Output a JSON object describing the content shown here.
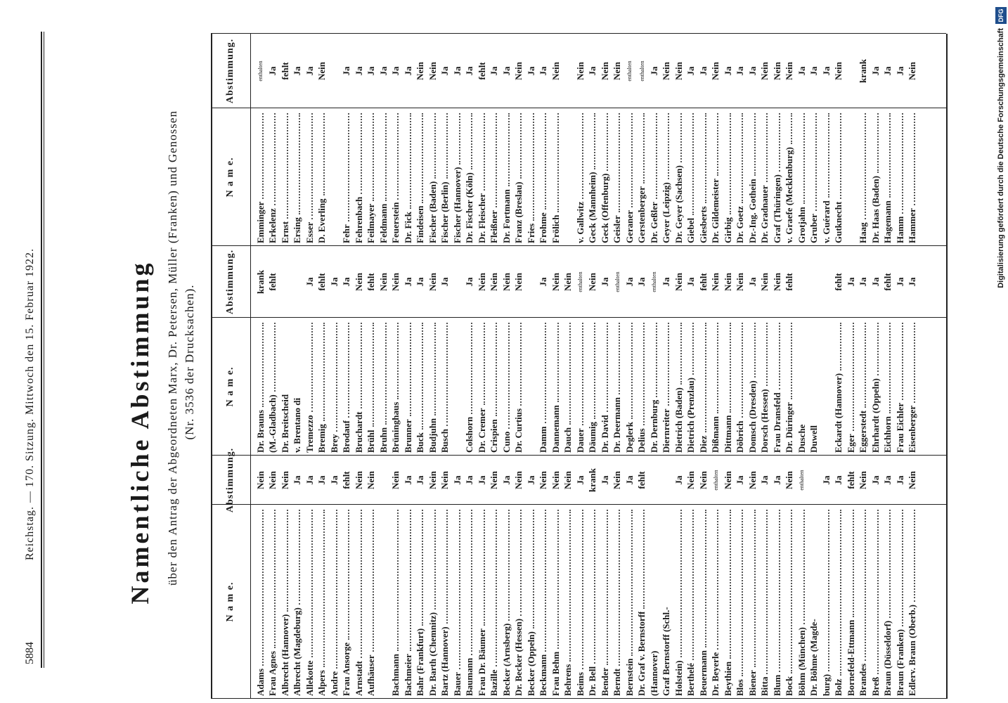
{
  "header": {
    "page": "5884",
    "running_head": "Reichstag. — 170. Sitzung. Mittwoch den 15. Februar 1922.",
    "title": "Namentliche Abstimmung",
    "subtitle": [
      "über den Antrag der Abgeordneten Marx, Dr. Petersen, Müller (Franken) und Genossen",
      "(Nr. 3536 der Drucksachen)."
    ]
  },
  "table": {
    "header": {
      "name": "N a m e.",
      "vote": "Abstimmung."
    },
    "columns": [
      {
        "groups": [
          {
            "rows": [
              {
                "name": "Adams",
                "vote": "Nein"
              },
              {
                "name": "Frau Agnes",
                "vote": "Nein"
              },
              {
                "name": "Albrecht (Hannover)",
                "vote": "Nein"
              },
              {
                "name": "Albrecht (Magdeburg)",
                "vote": "Ja"
              },
              {
                "name": "Allekotte",
                "vote": "Ja"
              },
              {
                "name": "Alpers",
                "vote": "Ja"
              },
              {
                "name": "Andre",
                "vote": "Ja"
              },
              {
                "name": "Frau Ansorge",
                "vote": "fehlt"
              },
              {
                "name": "Arnstadt",
                "vote": "Nein"
              },
              {
                "name": "Aufhäuser",
                "vote": "Nein"
              }
            ]
          },
          {
            "rows": [
              {
                "name": "Bachmann",
                "vote": "Nein"
              },
              {
                "name": "Bachmeier",
                "vote": "Ja"
              },
              {
                "name": "Bahr (Frankfurt)",
                "vote": "Ja"
              },
              {
                "name": "Dr. Barth (Chemnitz)",
                "vote": "Nein"
              },
              {
                "name": "Bartz (Hannover)",
                "vote": "Nein"
              },
              {
                "name": "Bauer",
                "vote": "Ja"
              },
              {
                "name": "Baumann",
                "vote": "Ja"
              },
              {
                "name": "Frau Dr. Bäumer",
                "vote": "Ja"
              },
              {
                "name": "Bazille",
                "vote": "Nein"
              },
              {
                "name": "Becker (Arnsberg)",
                "vote": "Ja"
              },
              {
                "name": "Dr. Becker (Hessen)",
                "vote": "Nein"
              },
              {
                "name": "Becker (Oppeln)",
                "vote": "Ja"
              },
              {
                "name": "Beckmann",
                "vote": "Nein"
              },
              {
                "name": "Frau Behm",
                "vote": "Nein"
              },
              {
                "name": "Behrens",
                "vote": "Nein"
              },
              {
                "name": "Beims",
                "vote": "Ja"
              },
              {
                "name": "Dr. Bell",
                "vote": "krank"
              },
              {
                "name": "Bender",
                "vote": "Ja"
              },
              {
                "name": "Berndt",
                "vote": "Nein"
              },
              {
                "name": "Bernstein",
                "vote": "Ja"
              },
              {
                "name": "Dr. Graf v. Bernstorff",
                "vote": "fehlt"
              },
              {
                "name": "(Hannover)"
              },
              {
                "name": "Graf Bernstorff (Schl.-"
              },
              {
                "name": "Holstein)",
                "vote": "Ja"
              },
              {
                "name": "Berthelé",
                "vote": "Nein"
              },
              {
                "name": "Beuermann",
                "vote": "Nein"
              },
              {
                "name": "Dr. Beyerle",
                "vote": "enthalten"
              },
              {
                "name": "Beythien",
                "vote": "Nein"
              },
              {
                "name": "Blos",
                "vote": "Ja"
              },
              {
                "name": "Biener",
                "vote": "Nein"
              },
              {
                "name": "Bitta",
                "vote": "Ja"
              },
              {
                "name": "Blum",
                "vote": "Ja"
              },
              {
                "name": "Bock",
                "vote": "Nein"
              },
              {
                "name": "Böhm (München)",
                "vote": "enthalten"
              },
              {
                "name": "Dr. Böhme (Magde-"
              },
              {
                "name": "burg)",
                "vote": "Ja"
              },
              {
                "name": "Bolz",
                "vote": "Ja"
              },
              {
                "name": "Bornefeld-Ettmann",
                "vote": "fehlt"
              },
              {
                "name": "Brandes",
                "vote": "Nein"
              },
              {
                "name": "Breß",
                "vote": "Ja"
              },
              {
                "name": "Braun (Düsseldorf)",
                "vote": "Ja"
              },
              {
                "name": "Braun (Franken)",
                "vote": "Ja"
              },
              {
                "name": "Edlerv. Braun (Oberb.)",
                "vote": "Nein"
              }
            ]
          }
        ]
      },
      {
        "groups": [
          {
            "rows": [
              {
                "name": "Dr. Brauns",
                "vote": "krank"
              },
              {
                "name": "(M.-Gladbach)",
                "vote": "fehlt"
              },
              {
                "name": "Dr. Breitscheid"
              },
              {
                "name": "v. Brentano di"
              },
              {
                "name": "Tremezzo",
                "vote": "Ja"
              },
              {
                "name": "Bremig",
                "vote": "fehlt"
              },
              {
                "name": "Brey",
                "vote": "Ja"
              },
              {
                "name": "Brodauf",
                "vote": "Ja"
              },
              {
                "name": "Bruchardt",
                "vote": "Nein"
              },
              {
                "name": "Brühl",
                "vote": "fehlt"
              },
              {
                "name": "Bruhn",
                "vote": "Nein"
              },
              {
                "name": "Brüninghaus",
                "vote": "Nein"
              },
              {
                "name": "Brunner",
                "vote": "Ja"
              },
              {
                "name": "Buck",
                "vote": "Ja"
              },
              {
                "name": "Budjuhn",
                "vote": "Nein"
              },
              {
                "name": "Busch",
                "vote": "Ja"
              }
            ]
          },
          {
            "rows": [
              {
                "name": "Colshorn",
                "vote": "Ja"
              },
              {
                "name": "Dr. Cremer",
                "vote": "Nein"
              },
              {
                "name": "Crispien",
                "vote": "Nein"
              },
              {
                "name": "Cuno",
                "vote": "Nein"
              },
              {
                "name": "Dr. Curtius",
                "vote": "Nein"
              }
            ]
          },
          {
            "rows": [
              {
                "name": "Damm",
                "vote": "Ja"
              },
              {
                "name": "Dannemann",
                "vote": "Nein"
              },
              {
                "name": "Dauch",
                "vote": "Nein"
              },
              {
                "name": "Dauer",
                "vote": "enthalten"
              },
              {
                "name": "Däumig",
                "vote": "Nein"
              },
              {
                "name": "Dr. David",
                "vote": "Ja"
              },
              {
                "name": "Dr. Deermann",
                "vote": "enthalten"
              },
              {
                "name": "Deglerk",
                "vote": "Ja"
              },
              {
                "name": "Delius",
                "vote": "Ja"
              },
              {
                "name": "Dr. Dernburg",
                "vote": "enthalten"
              },
              {
                "name": "Diernreiter",
                "vote": "Ja"
              },
              {
                "name": "Dietrich (Baden)",
                "vote": "Nein"
              },
              {
                "name": "Dietrich (Prenzlau)",
                "vote": "Ja"
              },
              {
                "name": "Diez",
                "vote": "fehlt"
              },
              {
                "name": "Dißmann",
                "vote": "Nein"
              },
              {
                "name": "Dittmann",
                "vote": "Nein"
              },
              {
                "name": "Döbrich",
                "vote": "Nein"
              },
              {
                "name": "Domsch (Dresden)",
                "vote": "Ja"
              },
              {
                "name": "Dorsch (Hessen)",
                "vote": "Nein"
              },
              {
                "name": "Frau Dransfeld",
                "vote": "Nein"
              },
              {
                "name": "Dr. Düringer",
                "vote": "fehlt"
              },
              {
                "name": "Dusche"
              },
              {
                "name": "Duwell"
              }
            ]
          },
          {
            "rows": [
              {
                "name": "Eckardt (Hannover)",
                "vote": "fehlt"
              },
              {
                "name": "Eger",
                "vote": "Ja"
              },
              {
                "name": "Eggerstedt",
                "vote": "Ja"
              },
              {
                "name": "Ehrhardt (Oppeln)",
                "vote": "Ja"
              },
              {
                "name": "Eichhorn",
                "vote": "fehlt"
              },
              {
                "name": "Frau Eichler",
                "vote": "Ja"
              },
              {
                "name": "Eisenberger",
                "vote": "Ja"
              }
            ]
          }
        ]
      },
      {
        "groups": [
          {
            "rows": [
              {
                "name": "Emminger",
                "vote": "enthalten"
              },
              {
                "name": "Erkelenz",
                "vote": "Ja"
              },
              {
                "name": "Ernst",
                "vote": "fehlt"
              },
              {
                "name": "Ersing",
                "vote": "Ja"
              },
              {
                "name": "Esser",
                "vote": "Ja"
              },
              {
                "name": "D. Everling",
                "vote": "Nein"
              }
            ]
          },
          {
            "rows": [
              {
                "name": "Fehr",
                "vote": "Ja"
              },
              {
                "name": "Fehrenbach",
                "vote": "Ja"
              },
              {
                "name": "Feilmayer",
                "vote": "Ja"
              },
              {
                "name": "Feldmann",
                "vote": "Ja"
              },
              {
                "name": "Feuerstein",
                "vote": "Ja"
              },
              {
                "name": "Dr. Fick",
                "vote": "Ja"
              },
              {
                "name": "Findeisen",
                "vote": "Nein"
              },
              {
                "name": "Fischer (Baden)",
                "vote": "Nein"
              },
              {
                "name": "Fischer (Berlin)",
                "vote": "Ja"
              },
              {
                "name": "Fischer (Hannover)",
                "vote": "Ja"
              },
              {
                "name": "Dr. Fischer (Köln)",
                "vote": "Ja"
              },
              {
                "name": "Dr. Fleischer",
                "vote": "fehlt"
              },
              {
                "name": "Fleißner",
                "vote": "Ja"
              },
              {
                "name": "Dr. Fortmann",
                "vote": "Ja"
              },
              {
                "name": "Franz (Breslau)",
                "vote": "Nein"
              },
              {
                "name": "Fries",
                "vote": "Ja"
              },
              {
                "name": "Frohme",
                "vote": "Ja"
              },
              {
                "name": "Frölich",
                "vote": "Nein"
              }
            ]
          },
          {
            "rows": [
              {
                "name": "v. Gallwitz",
                "vote": "Nein"
              },
              {
                "name": "Geck (Mannheim)",
                "vote": "Ja"
              },
              {
                "name": "Geck (Offenburg)",
                "vote": "Nein"
              },
              {
                "name": "Geisler",
                "vote": "Nein"
              },
              {
                "name": "Geraner",
                "vote": "enthalten"
              },
              {
                "name": "Gerstenberger",
                "vote": "enthalten"
              },
              {
                "name": "Dr. Geßler",
                "vote": "Ja"
              },
              {
                "name": "Geyer (Leipzig)",
                "vote": "Nein"
              },
              {
                "name": "Dr. Geyer (Sachsen)",
                "vote": "Nein"
              },
              {
                "name": "Giebel",
                "vote": "Ja"
              },
              {
                "name": "Giesberts",
                "vote": "Ja"
              },
              {
                "name": "Dr. Gildemeister",
                "vote": "Nein"
              },
              {
                "name": "Girbig",
                "vote": "Ja"
              },
              {
                "name": "Dr. Goetz",
                "vote": "Ja"
              },
              {
                "name": "Dr.-Ing. Gothein",
                "vote": "Ja"
              },
              {
                "name": "Dr. Gradnauer",
                "vote": "Nein"
              },
              {
                "name": "Graf (Thüringen)",
                "vote": "Nein"
              },
              {
                "name": "v. Graefe (Mecklenburg)",
                "vote": "Nein"
              },
              {
                "name": "Grotjahn",
                "vote": "Ja"
              },
              {
                "name": "Gruber",
                "vote": "Ja"
              },
              {
                "name": "v. Guérard",
                "vote": "Ja"
              },
              {
                "name": "Gutknecht",
                "vote": "Nein"
              }
            ]
          },
          {
            "rows": [
              {
                "name": "Haag",
                "vote": "krank"
              },
              {
                "name": "Dr. Haas (Baden)",
                "vote": "Ja"
              },
              {
                "name": "Hagemann",
                "vote": "Ja"
              },
              {
                "name": "Hamm",
                "vote": "Ja"
              },
              {
                "name": "Hammer",
                "vote": "Nein"
              }
            ]
          }
        ]
      }
    ]
  },
  "footer": {
    "note": "Digitalisierung gefördert durch die Deutsche Forschungsgemeinschaft",
    "logo": "DFG"
  }
}
